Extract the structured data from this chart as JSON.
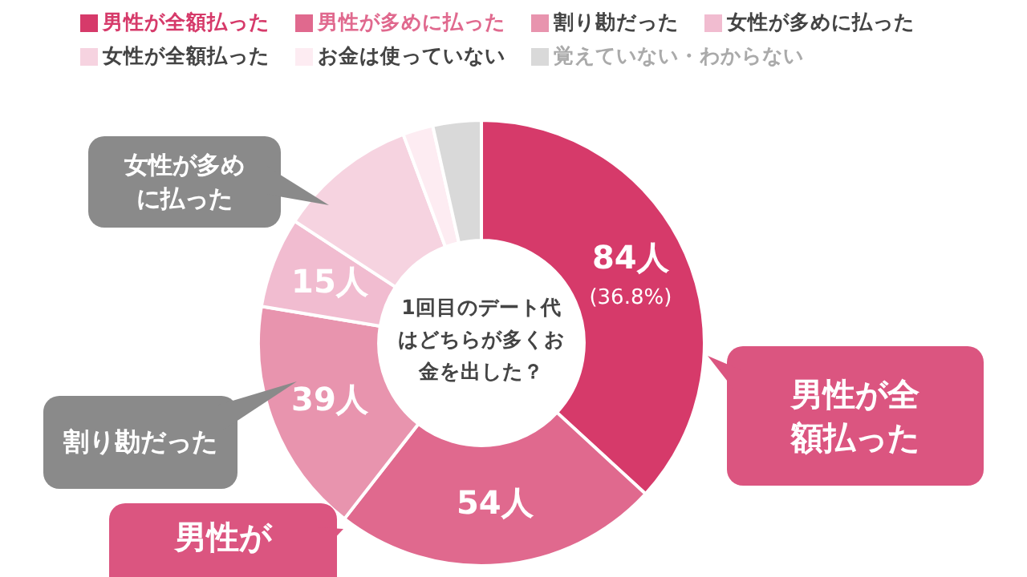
{
  "chart_data": {
    "type": "donut",
    "title": "1回目のデート代はどちらが多くお金を出した？",
    "categories": [
      "男性が全額払った",
      "男性が多めに払った",
      "割り勘だった",
      "女性が多めに払った",
      "女性が全額払った",
      "お金は使っていない",
      "覚えていない・わからない"
    ],
    "values": [
      84,
      54,
      39,
      15,
      23,
      5,
      8
    ],
    "colors": [
      "#d63a6a",
      "#e0698e",
      "#e894ae",
      "#f1bcd0",
      "#f6d3e0",
      "#fdecf2",
      "#d9d9d9"
    ],
    "value_labels": [
      "84人\n(36.8%)",
      "54人",
      "39人",
      "15人",
      null,
      null,
      null
    ],
    "annotations": [
      "女性が多めに払った",
      "割り勘だった",
      "男性が全額払った",
      "男性が"
    ],
    "legend": "top"
  }
}
